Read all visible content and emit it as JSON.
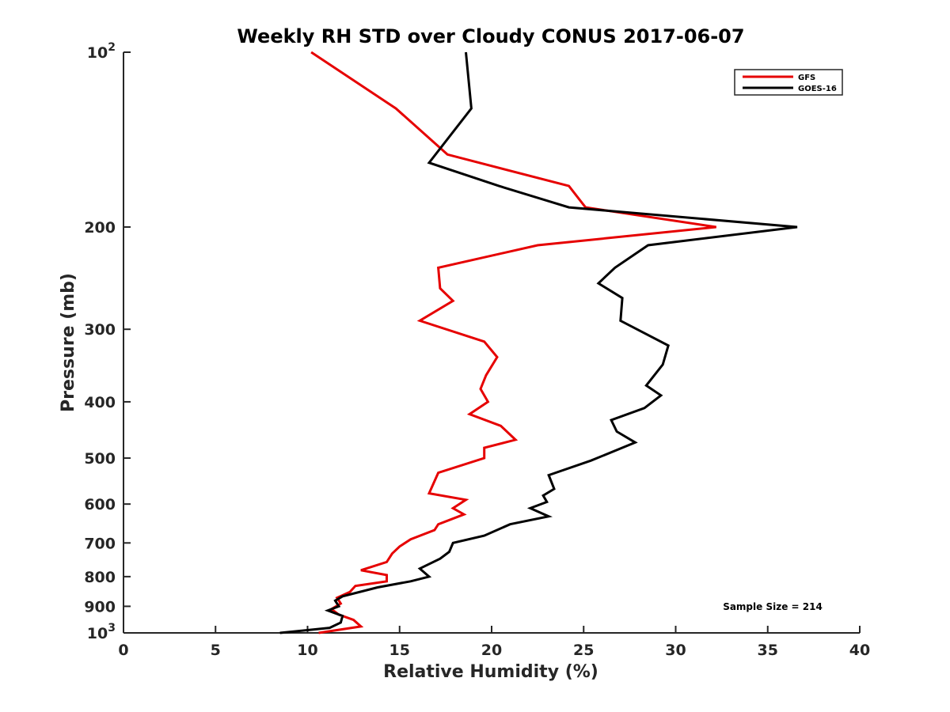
{
  "chart_data": {
    "type": "line",
    "title": "Weekly RH STD over Cloudy CONUS 2017-06-07",
    "xlabel": "Relative Humidity (%)",
    "ylabel": "Pressure (mb)",
    "xlim": [
      0,
      40
    ],
    "ylim": [
      100,
      1000
    ],
    "yscale": "log",
    "y_reversed": true,
    "x_ticks": [
      0,
      5,
      10,
      15,
      20,
      25,
      30,
      35,
      40
    ],
    "x_tick_labels": [
      "0",
      "5",
      "10",
      "15",
      "20",
      "25",
      "30",
      "35",
      "40"
    ],
    "y_ticks": [
      {
        "value": 100,
        "label": "10",
        "sup": "2"
      },
      {
        "value": 200,
        "label": "200",
        "sup": ""
      },
      {
        "value": 300,
        "label": "300",
        "sup": ""
      },
      {
        "value": 400,
        "label": "400",
        "sup": ""
      },
      {
        "value": 500,
        "label": "500",
        "sup": ""
      },
      {
        "value": 600,
        "label": "600",
        "sup": ""
      },
      {
        "value": 700,
        "label": "700",
        "sup": ""
      },
      {
        "value": 800,
        "label": "800",
        "sup": ""
      },
      {
        "value": 900,
        "label": "900",
        "sup": ""
      },
      {
        "value": 1000,
        "label": "10",
        "sup": "3"
      }
    ],
    "legend_position": "top-right",
    "annotation": "Sample Size = 214",
    "series": [
      {
        "name": "GFS",
        "color": "#e60000",
        "points": [
          [
            10.2,
            100
          ],
          [
            14.8,
            125
          ],
          [
            17.6,
            150
          ],
          [
            24.2,
            170
          ],
          [
            25.1,
            185
          ],
          [
            32.2,
            200
          ],
          [
            22.5,
            215
          ],
          [
            17.1,
            235
          ],
          [
            17.2,
            255
          ],
          [
            17.9,
            268
          ],
          [
            16.1,
            290
          ],
          [
            19.6,
            315
          ],
          [
            20.3,
            335
          ],
          [
            19.7,
            360
          ],
          [
            19.4,
            380
          ],
          [
            19.8,
            400
          ],
          [
            18.8,
            420
          ],
          [
            20.5,
            440
          ],
          [
            21.3,
            465
          ],
          [
            19.6,
            480
          ],
          [
            19.6,
            500
          ],
          [
            17.1,
            530
          ],
          [
            16.6,
            575
          ],
          [
            18.6,
            590
          ],
          [
            17.9,
            610
          ],
          [
            18.5,
            625
          ],
          [
            17.1,
            650
          ],
          [
            16.9,
            665
          ],
          [
            15.6,
            690
          ],
          [
            15.0,
            710
          ],
          [
            14.6,
            730
          ],
          [
            14.3,
            755
          ],
          [
            12.9,
            780
          ],
          [
            14.3,
            795
          ],
          [
            14.3,
            815
          ],
          [
            12.6,
            830
          ],
          [
            12.3,
            850
          ],
          [
            11.6,
            870
          ],
          [
            11.8,
            890
          ],
          [
            11.3,
            910
          ],
          [
            11.7,
            930
          ],
          [
            12.5,
            950
          ],
          [
            12.9,
            975
          ],
          [
            10.6,
            1000
          ]
        ]
      },
      {
        "name": "GOES-16",
        "color": "#000000",
        "points": [
          [
            18.6,
            100
          ],
          [
            18.9,
            125
          ],
          [
            16.6,
            155
          ],
          [
            20.4,
            170
          ],
          [
            24.2,
            185
          ],
          [
            36.6,
            200
          ],
          [
            28.5,
            215
          ],
          [
            26.7,
            235
          ],
          [
            25.8,
            250
          ],
          [
            27.1,
            265
          ],
          [
            27.0,
            290
          ],
          [
            29.6,
            320
          ],
          [
            29.3,
            345
          ],
          [
            28.4,
            375
          ],
          [
            29.2,
            390
          ],
          [
            28.3,
            410
          ],
          [
            26.5,
            430
          ],
          [
            26.8,
            450
          ],
          [
            27.8,
            470
          ],
          [
            25.4,
            505
          ],
          [
            23.1,
            535
          ],
          [
            23.4,
            565
          ],
          [
            22.8,
            580
          ],
          [
            23.0,
            595
          ],
          [
            22.1,
            610
          ],
          [
            23.1,
            630
          ],
          [
            21.0,
            650
          ],
          [
            19.6,
            680
          ],
          [
            17.9,
            700
          ],
          [
            17.7,
            725
          ],
          [
            17.2,
            745
          ],
          [
            16.1,
            775
          ],
          [
            16.6,
            800
          ],
          [
            15.6,
            815
          ],
          [
            13.8,
            835
          ],
          [
            11.9,
            865
          ],
          [
            11.5,
            880
          ],
          [
            11.7,
            900
          ],
          [
            11.1,
            915
          ],
          [
            11.9,
            935
          ],
          [
            11.8,
            960
          ],
          [
            11.2,
            980
          ],
          [
            8.5,
            1000
          ]
        ]
      }
    ]
  }
}
